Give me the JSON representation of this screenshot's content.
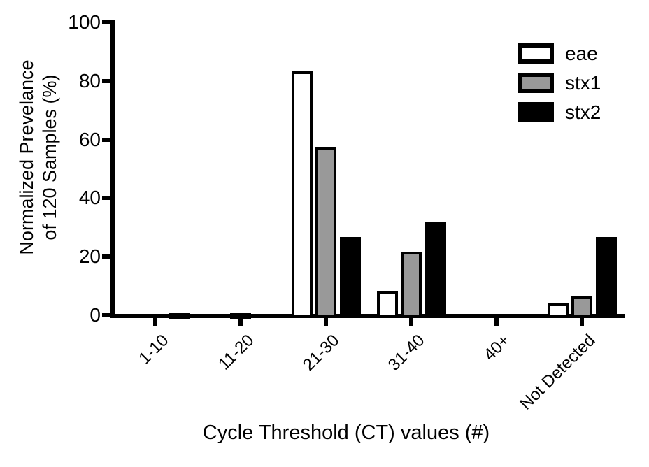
{
  "chart_data": {
    "type": "bar",
    "title": "",
    "xlabel": "Cycle Threshold (CT) values (#)",
    "ylabel": "Normalized Prevelance of 120 Samples (%)",
    "ylabel_lines": [
      "Normalized Prevelance",
      "of 120 Samples (%)"
    ],
    "categories": [
      "1-10",
      "11-20",
      "21-30",
      "31-40",
      "40+",
      "Not Detected"
    ],
    "series": [
      {
        "name": "eae",
        "fill": "#ffffff",
        "values": [
          0,
          0,
          83.3,
          8.3,
          0,
          4.2
        ]
      },
      {
        "name": "stx1",
        "fill": "#999999",
        "values": [
          0,
          0.8,
          57.5,
          21.7,
          0,
          6.7
        ]
      },
      {
        "name": "stx2",
        "fill": "#000000",
        "values": [
          0.8,
          0,
          26.7,
          31.7,
          0,
          26.7
        ]
      }
    ],
    "ylim": [
      0,
      100
    ],
    "yticks": [
      0,
      20,
      40,
      60,
      80,
      100
    ],
    "grid": false,
    "legend_position": "top-right",
    "bar_border_color": "#000000",
    "axis_color": "#000000"
  }
}
